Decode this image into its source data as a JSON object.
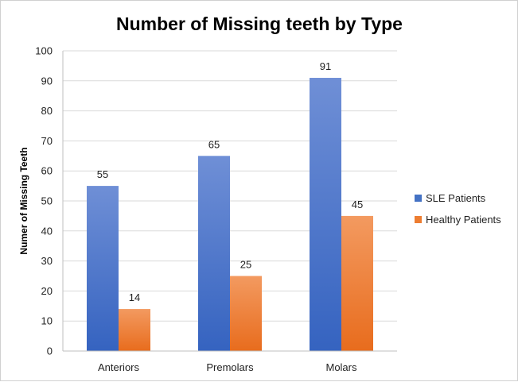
{
  "chart_data": {
    "type": "bar",
    "title": "Number of Missing teeth by Type",
    "xlabel": "",
    "ylabel": "Numer of Missing Teeth",
    "categories": [
      "Anteriors",
      "Premolars",
      "Molars"
    ],
    "series": [
      {
        "name": "SLE Patients",
        "values": [
          55,
          65,
          91
        ],
        "color": "#4472c4"
      },
      {
        "name": "Healthy Patients",
        "values": [
          14,
          25,
          45
        ],
        "color": "#ed7d31"
      }
    ],
    "ylim": [
      0,
      100
    ],
    "yticks": [
      0,
      10,
      20,
      30,
      40,
      50,
      60,
      70,
      80,
      90,
      100
    ],
    "grid": true,
    "legend": "right",
    "data_labels": true
  }
}
